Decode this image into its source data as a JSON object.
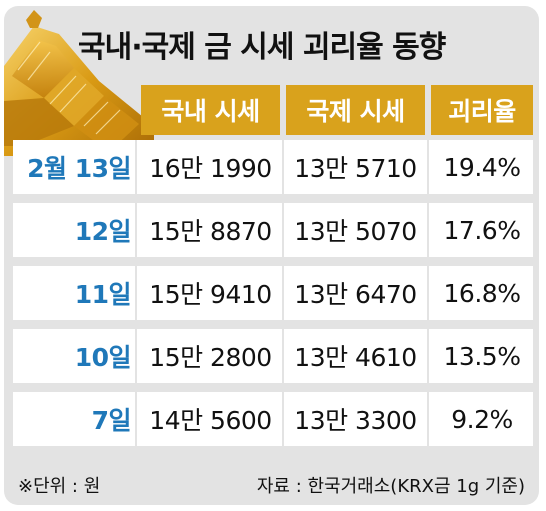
{
  "title": "국내·국제 금 시세 괴리율 동향",
  "headers": [
    "국내 시세",
    "국제 시세",
    "괴리율"
  ],
  "rows": [
    {
      "date": "2월 13일",
      "domestic": "16만 1990",
      "international": "13만 5710",
      "gap": "19.4%"
    },
    {
      "date": "12일",
      "domestic": "15만 8870",
      "international": "13만 5070",
      "gap": "17.6%"
    },
    {
      "date": "11일",
      "domestic": "15만 9410",
      "international": "13만 6470",
      "gap": "16.8%"
    },
    {
      "date": "10일",
      "domestic": "15만 2800",
      "international": "13만 4610",
      "gap": "13.5%"
    },
    {
      "date": "7일",
      "domestic": "14만 5600",
      "international": "13만 3300",
      "gap": "9.2%"
    }
  ],
  "footer": {
    "unit": "※단위 : 원",
    "source": "자료 : 한국거래소(KRX금 1g 기준)"
  },
  "colors": {
    "background": "#e3e3e3",
    "header": "#d9a21c",
    "date_text": "#1f78b9",
    "row_bg": "#ffffff"
  },
  "icons": [
    "gold-bars-illustration"
  ]
}
